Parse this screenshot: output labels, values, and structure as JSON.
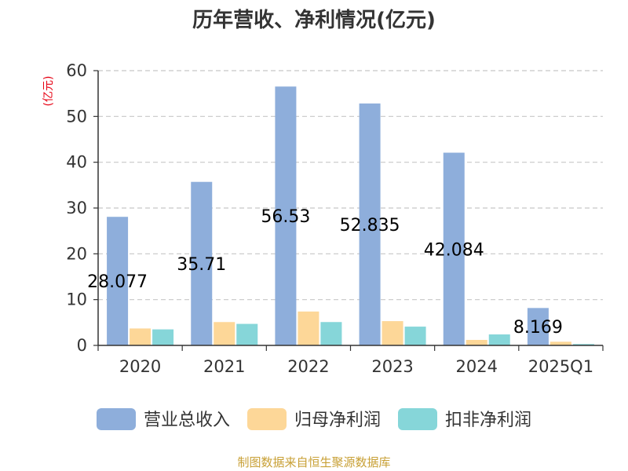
{
  "chart_data": {
    "type": "bar",
    "title": "历年营收、净利情况(亿元)",
    "unit_label": "(亿元)",
    "categories": [
      "2020",
      "2021",
      "2022",
      "2023",
      "2024",
      "2025Q1"
    ],
    "series": [
      {
        "name": "营业总收入",
        "color": "#8eaedb",
        "values": [
          28.077,
          35.71,
          56.53,
          52.835,
          42.084,
          8.169
        ],
        "labels": [
          "28.077",
          "35.71",
          "56.53",
          "52.835",
          "42.084",
          "8.169"
        ]
      },
      {
        "name": "归母净利润",
        "color": "#fdd798",
        "values": [
          3.7,
          5.1,
          7.4,
          5.3,
          1.2,
          0.8
        ]
      },
      {
        "name": "扣非净利润",
        "color": "#86d6d9",
        "values": [
          3.5,
          4.7,
          5.1,
          4.1,
          2.4,
          0.3
        ]
      }
    ],
    "ylim": [
      0,
      60
    ],
    "yticks": [
      0,
      10,
      20,
      30,
      40,
      50,
      60
    ],
    "grid": true,
    "legend_position": "bottom"
  },
  "source": "制图数据来自恒生聚源数据库"
}
